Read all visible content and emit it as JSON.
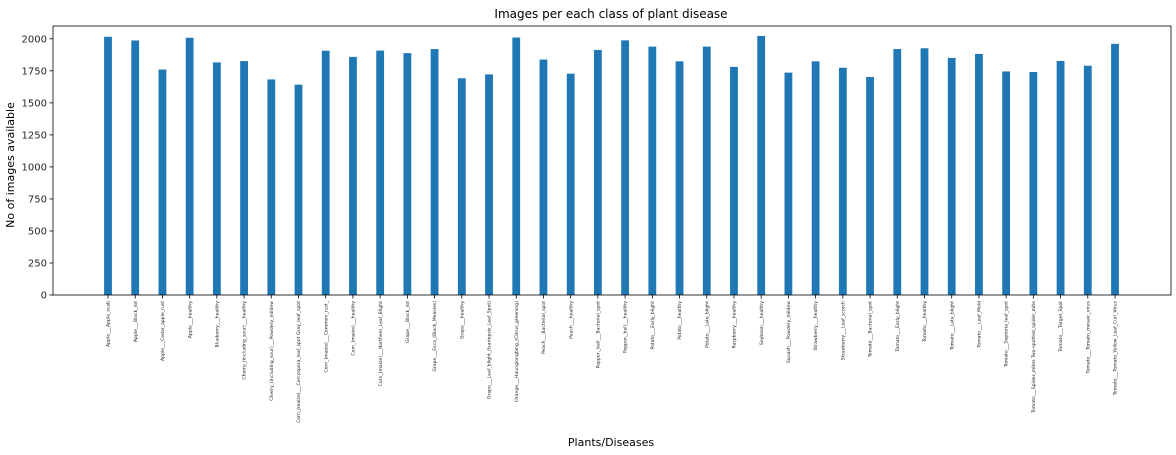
{
  "chart_data": {
    "type": "bar",
    "title": "Images per each class of plant disease",
    "xlabel": "Plants/Diseases",
    "ylabel": "No of images available",
    "ylim": [
      0,
      2100
    ],
    "yticks": [
      0,
      250,
      500,
      750,
      1000,
      1250,
      1500,
      1750,
      2000
    ],
    "grid": false,
    "bar_color": "#1f77b4",
    "categories": [
      "Apple___Apple_scab",
      "Apple___Black_rot",
      "Apple___Cedar_apple_rust",
      "Apple___healthy",
      "Blueberry___healthy",
      "Cherry_(including_sour)___healthy",
      "Cherry_(including_sour)___Powdery_mildew",
      "Corn_(maize)___Cercospora_leaf_spot Gray_leaf_spot",
      "Corn_(maize)___Common_rust_",
      "Corn_(maize)___healthy",
      "Corn_(maize)___Northern_Leaf_Blight",
      "Grape___Black_rot",
      "Grape___Esca_(Black_Measles)",
      "Grape___healthy",
      "Grape___Leaf_blight_(Isariopsis_Leaf_Spot)",
      "Orange___Haunglongbing_(Citrus_greening)",
      "Peach___Bacterial_spot",
      "Peach___healthy",
      "Pepper,_bell___Bacterial_spot",
      "Pepper,_bell___healthy",
      "Potato___Early_blight",
      "Potato___healthy",
      "Potato___Late_blight",
      "Raspberry___healthy",
      "Soybean___healthy",
      "Squash___Powdery_mildew",
      "Strawberry___healthy",
      "Strawberry___Leaf_scorch",
      "Tomato___Bacterial_spot",
      "Tomato___Early_blight",
      "Tomato___healthy",
      "Tomato___Late_blight",
      "Tomato___Leaf_Mold",
      "Tomato___Septoria_leaf_spot",
      "Tomato___Spider_mites Two-spotted_spider_mite",
      "Tomato___Target_Spot",
      "Tomato___Tomato_mosaic_virus",
      "Tomato___Tomato_Yellow_Leaf_Curl_Virus"
    ],
    "values": [
      2016,
      1987,
      1760,
      2008,
      1816,
      1826,
      1683,
      1642,
      1907,
      1859,
      1908,
      1888,
      1920,
      1692,
      1722,
      2010,
      1838,
      1728,
      1913,
      1988,
      1939,
      1824,
      1939,
      1781,
      2022,
      1736,
      1824,
      1774,
      1702,
      1920,
      1926,
      1851,
      1882,
      1745,
      1741,
      1827,
      1790,
      1961
    ]
  }
}
